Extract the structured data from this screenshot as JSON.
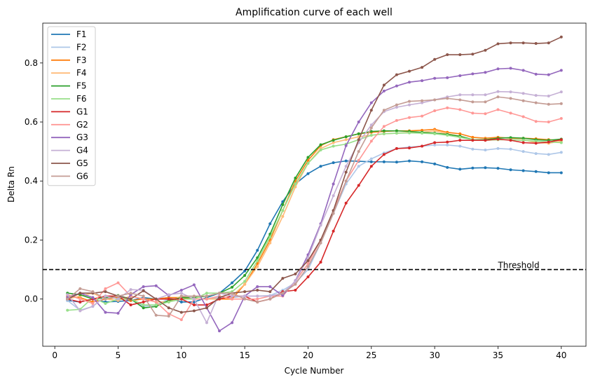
{
  "chart_data": {
    "type": "line",
    "title": "Amplification curve of each well",
    "xlabel": "Cycle Number",
    "ylabel": "Delta Rn",
    "xlim": [
      -0.95,
      41.95
    ],
    "ylim": [
      -0.16,
      0.935
    ],
    "xticks": [
      0,
      5,
      10,
      15,
      20,
      25,
      30,
      35,
      40
    ],
    "yticks": [
      0.0,
      0.2,
      0.4,
      0.6,
      0.8
    ],
    "ytick_labels": [
      "0.0",
      "0.2",
      "0.4",
      "0.6",
      "0.8"
    ],
    "grid": false,
    "legend_position": "top-left",
    "threshold": {
      "value": 0.1,
      "label": "Threshold",
      "color": "#000000",
      "style": "dashed"
    },
    "x": [
      1,
      2,
      3,
      4,
      5,
      6,
      7,
      8,
      9,
      10,
      11,
      12,
      13,
      14,
      15,
      16,
      17,
      18,
      19,
      20,
      21,
      22,
      23,
      24,
      25,
      26,
      27,
      28,
      29,
      30,
      31,
      32,
      33,
      34,
      35,
      36,
      37,
      38,
      39,
      40
    ],
    "series": [
      {
        "name": "F1",
        "color": "#1f77b4",
        "values": [
          -0.005,
          -0.01,
          0.0,
          -0.01,
          -0.008,
          -0.005,
          0.005,
          0.0,
          0.005,
          -0.01,
          -0.01,
          0.005,
          0.02,
          0.055,
          0.095,
          0.165,
          0.255,
          0.33,
          0.39,
          0.425,
          0.45,
          0.462,
          0.468,
          0.467,
          0.465,
          0.465,
          0.464,
          0.468,
          0.465,
          0.458,
          0.446,
          0.44,
          0.444,
          0.445,
          0.443,
          0.438,
          0.435,
          0.432,
          0.428,
          0.428
        ]
      },
      {
        "name": "F2",
        "color": "#aec7e8",
        "values": [
          -0.005,
          -0.038,
          -0.025,
          0.01,
          0.005,
          0.0,
          -0.025,
          -0.02,
          0.0,
          0.002,
          0.0,
          0.0,
          0.005,
          0.005,
          0.01,
          0.01,
          0.012,
          0.03,
          0.055,
          0.1,
          0.19,
          0.29,
          0.39,
          0.45,
          0.475,
          0.495,
          0.51,
          0.515,
          0.518,
          0.522,
          0.522,
          0.518,
          0.508,
          0.505,
          0.51,
          0.508,
          0.5,
          0.493,
          0.49,
          0.497
        ]
      },
      {
        "name": "F3",
        "color": "#ff7f0e",
        "values": [
          0.01,
          0.005,
          -0.01,
          0.0,
          0.005,
          -0.005,
          0.0,
          0.0,
          0.005,
          0.005,
          0.0,
          0.0,
          0.0,
          0.0,
          0.05,
          0.12,
          0.2,
          0.3,
          0.4,
          0.47,
          0.52,
          0.54,
          0.55,
          0.56,
          0.565,
          0.568,
          0.57,
          0.57,
          0.572,
          0.575,
          0.565,
          0.56,
          0.548,
          0.545,
          0.548,
          0.545,
          0.545,
          0.543,
          0.54,
          0.538
        ]
      },
      {
        "name": "F4",
        "color": "#ffbb78",
        "values": [
          0.0,
          0.01,
          0.02,
          0.0,
          -0.005,
          0.01,
          0.0,
          -0.01,
          -0.01,
          0.01,
          0.0,
          0.0,
          0.0,
          0.01,
          0.05,
          0.11,
          0.19,
          0.28,
          0.38,
          0.46,
          0.51,
          0.53,
          0.54,
          0.55,
          0.555,
          0.56,
          0.562,
          0.565,
          0.565,
          0.57,
          0.56,
          0.552,
          0.54,
          0.538,
          0.54,
          0.54,
          0.54,
          0.53,
          0.528,
          0.535
        ]
      },
      {
        "name": "F5",
        "color": "#2ca02c",
        "values": [
          0.02,
          0.015,
          0.0,
          0.005,
          0.012,
          0.0,
          -0.03,
          -0.025,
          -0.005,
          0.005,
          0.005,
          0.01,
          0.02,
          0.04,
          0.08,
          0.14,
          0.22,
          0.32,
          0.41,
          0.48,
          0.523,
          0.538,
          0.55,
          0.56,
          0.568,
          0.57,
          0.57,
          0.568,
          0.565,
          0.562,
          0.558,
          0.552,
          0.54,
          0.54,
          0.545,
          0.547,
          0.545,
          0.54,
          0.538,
          0.542
        ]
      },
      {
        "name": "F6",
        "color": "#98df8a",
        "values": [
          -0.038,
          -0.035,
          0.005,
          -0.015,
          0.0,
          0.0,
          -0.02,
          -0.02,
          -0.01,
          0.0,
          0.0,
          0.02,
          0.02,
          0.025,
          0.06,
          0.13,
          0.21,
          0.3,
          0.39,
          0.46,
          0.505,
          0.518,
          0.525,
          0.54,
          0.555,
          0.56,
          0.562,
          0.563,
          0.562,
          0.56,
          0.555,
          0.548,
          0.54,
          0.538,
          0.54,
          0.54,
          0.538,
          0.535,
          0.532,
          0.53
        ]
      },
      {
        "name": "G1",
        "color": "#d62728",
        "values": [
          0.0,
          -0.01,
          0.0,
          0.01,
          0.01,
          -0.02,
          -0.01,
          0.0,
          0.0,
          0.0,
          -0.02,
          -0.02,
          0.0,
          0.01,
          0.01,
          -0.01,
          0.0,
          0.025,
          0.03,
          0.075,
          0.125,
          0.23,
          0.325,
          0.385,
          0.45,
          0.49,
          0.51,
          0.512,
          0.518,
          0.53,
          0.532,
          0.538,
          0.538,
          0.538,
          0.542,
          0.538,
          0.53,
          0.528,
          0.532,
          0.54
        ]
      },
      {
        "name": "G2",
        "color": "#ff9896",
        "values": [
          0.015,
          0.0,
          -0.015,
          0.035,
          0.055,
          0.01,
          0.0,
          -0.01,
          -0.05,
          -0.07,
          0.0,
          0.0,
          0.01,
          0.0,
          0.0,
          0.0,
          0.01,
          0.01,
          0.06,
          0.12,
          0.2,
          0.3,
          0.4,
          0.47,
          0.535,
          0.585,
          0.605,
          0.615,
          0.62,
          0.638,
          0.648,
          0.642,
          0.63,
          0.628,
          0.642,
          0.63,
          0.618,
          0.602,
          0.6,
          0.612
        ]
      },
      {
        "name": "G3",
        "color": "#9467bd",
        "values": [
          0.005,
          0.02,
          0.005,
          -0.045,
          -0.048,
          0.015,
          0.042,
          0.045,
          0.012,
          0.03,
          0.048,
          -0.03,
          -0.108,
          -0.08,
          0.01,
          0.042,
          0.042,
          0.012,
          0.062,
          0.15,
          0.255,
          0.39,
          0.52,
          0.6,
          0.665,
          0.705,
          0.722,
          0.735,
          0.74,
          0.748,
          0.75,
          0.757,
          0.763,
          0.768,
          0.78,
          0.782,
          0.775,
          0.762,
          0.76,
          0.775
        ]
      },
      {
        "name": "G4",
        "color": "#c5b0d5",
        "values": [
          0.015,
          -0.04,
          -0.025,
          0.01,
          0.0,
          0.032,
          0.03,
          0.0,
          0.015,
          0.02,
          0.0,
          -0.08,
          0.02,
          0.01,
          0.01,
          0.01,
          0.01,
          0.02,
          0.06,
          0.14,
          0.25,
          0.35,
          0.45,
          0.53,
          0.59,
          0.635,
          0.65,
          0.658,
          0.665,
          0.675,
          0.685,
          0.692,
          0.692,
          0.692,
          0.703,
          0.702,
          0.697,
          0.69,
          0.688,
          0.702
        ]
      },
      {
        "name": "G5",
        "color": "#8c564b",
        "values": [
          0.0,
          0.02,
          0.02,
          0.025,
          0.01,
          0.0,
          0.028,
          0.0,
          -0.03,
          -0.045,
          -0.04,
          -0.03,
          0.005,
          0.02,
          0.025,
          0.03,
          0.025,
          0.07,
          0.085,
          0.13,
          0.2,
          0.3,
          0.43,
          0.54,
          0.64,
          0.725,
          0.76,
          0.772,
          0.785,
          0.812,
          0.828,
          0.828,
          0.83,
          0.843,
          0.865,
          0.868,
          0.868,
          0.866,
          0.868,
          0.888
        ]
      },
      {
        "name": "G6",
        "color": "#c49c94",
        "values": [
          0.0,
          0.035,
          0.025,
          0.0,
          0.01,
          0.02,
          0.01,
          -0.055,
          -0.058,
          0.01,
          0.01,
          0.01,
          0.02,
          0.02,
          0.0,
          -0.01,
          0.0,
          0.02,
          0.05,
          0.11,
          0.19,
          0.29,
          0.4,
          0.5,
          0.58,
          0.64,
          0.658,
          0.67,
          0.672,
          0.675,
          0.68,
          0.675,
          0.668,
          0.668,
          0.685,
          0.68,
          0.672,
          0.665,
          0.66,
          0.662
        ]
      }
    ]
  }
}
